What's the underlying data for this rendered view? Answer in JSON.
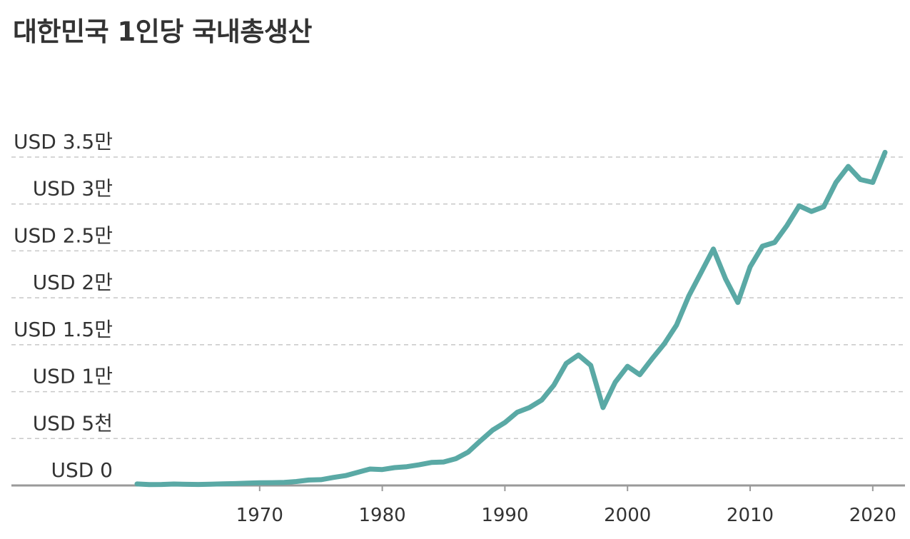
{
  "chart_data": {
    "type": "line",
    "title": "대한민국 1인당 국내총생산",
    "xlabel": "",
    "ylabel": "",
    "xlim": [
      1960,
      2021
    ],
    "ylim": [
      0,
      35000
    ],
    "grid": true,
    "y_ticks": [
      {
        "value": 0,
        "label": "USD 0"
      },
      {
        "value": 5000,
        "label": "USD 5천"
      },
      {
        "value": 10000,
        "label": "USD 1만"
      },
      {
        "value": 15000,
        "label": "USD 1.5만"
      },
      {
        "value": 20000,
        "label": "USD 2만"
      },
      {
        "value": 25000,
        "label": "USD 2.5만"
      },
      {
        "value": 30000,
        "label": "USD 3만"
      },
      {
        "value": 35000,
        "label": "USD 3.5만"
      }
    ],
    "x_ticks": [
      {
        "value": 1970,
        "label": "1970"
      },
      {
        "value": 1980,
        "label": "1980"
      },
      {
        "value": 1990,
        "label": "1990"
      },
      {
        "value": 2000,
        "label": "2000"
      },
      {
        "value": 2010,
        "label": "2010"
      },
      {
        "value": 2020,
        "label": "2020"
      }
    ],
    "line_color": "#5aa9a5",
    "series": [
      {
        "x": [
          1960,
          1961,
          1962,
          1963,
          1964,
          1965,
          1966,
          1967,
          1968,
          1969,
          1970,
          1971,
          1972,
          1973,
          1974,
          1975,
          1976,
          1977,
          1978,
          1979,
          1980,
          1981,
          1982,
          1983,
          1984,
          1985,
          1986,
          1987,
          1988,
          1989,
          1990,
          1991,
          1992,
          1993,
          1994,
          1995,
          1996,
          1997,
          1998,
          1999,
          2000,
          2001,
          2002,
          2003,
          2004,
          2005,
          2006,
          2007,
          2008,
          2009,
          2010,
          2011,
          2012,
          2013,
          2014,
          2015,
          2016,
          2017,
          2018,
          2019,
          2020,
          2021
        ],
        "values": [
          160,
          95,
          105,
          150,
          125,
          110,
          140,
          165,
          200,
          250,
          280,
          300,
          330,
          420,
          580,
          620,
          850,
          1050,
          1400,
          1750,
          1700,
          1900,
          2000,
          2200,
          2450,
          2500,
          2850,
          3550,
          4750,
          5900,
          6700,
          7800,
          8300,
          9100,
          10700,
          13000,
          13900,
          12800,
          8300,
          11000,
          12700,
          11800,
          13500,
          15100,
          17100,
          20200,
          22700,
          25200,
          22000,
          19500,
          23300,
          25500,
          25900,
          27700,
          29800,
          29200,
          29700,
          32300,
          34000,
          32600,
          32300,
          35500
        ]
      }
    ]
  }
}
